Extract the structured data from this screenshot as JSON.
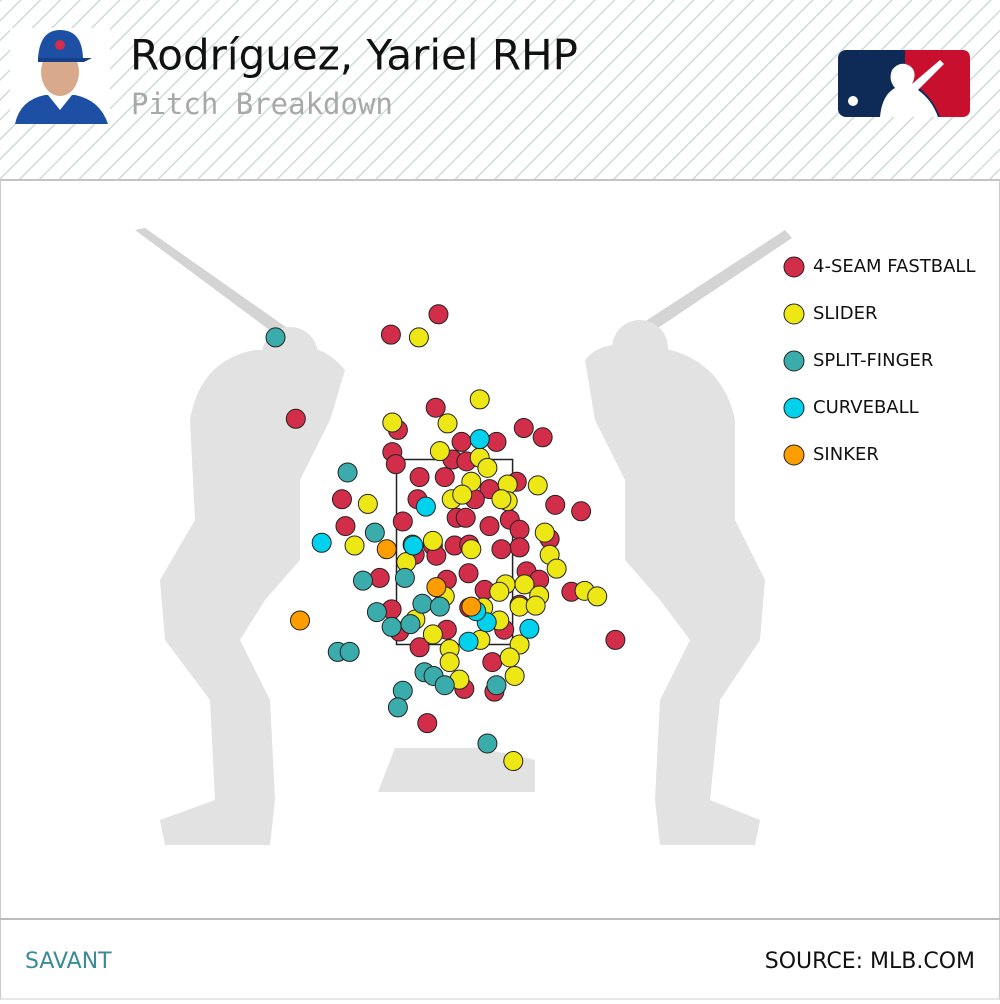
{
  "chart_data": {
    "type": "scatter",
    "title": "Rodríguez, Yariel RHP",
    "subtitle": "Pitch Breakdown",
    "footer_left": "SAVANT",
    "footer_right": "SOURCE: MLB.COM",
    "xlim": [
      -6.5,
      7.8
    ],
    "ylim": [
      -1.5,
      6.5
    ],
    "strike_zone": {
      "x": [
        -0.83,
        0.83
      ],
      "y": [
        1.5,
        3.5
      ]
    },
    "series": [
      {
        "name": "4-SEAM FASTBALL",
        "color": "#d22d49",
        "x": [
          -0.23,
          -0.91,
          -2.27,
          -0.27,
          -0.81,
          0.1,
          0.6,
          0.99,
          1.26,
          -0.89,
          -0.03,
          0.17,
          -0.84,
          -0.5,
          -0.14,
          0.5,
          0.89,
          -1.61,
          -0.53,
          0.29,
          1.44,
          1.81,
          0.03,
          -1.56,
          -0.74,
          0.5,
          0.79,
          0.93,
          -0.31,
          0.0,
          -0.57,
          -0.26,
          0.21,
          0.93,
          1.36,
          -1.07,
          0.2,
          -0.11,
          1.03,
          1.21,
          0.43,
          1.67,
          -0.9,
          0.21,
          0.93,
          -0.11,
          -0.79,
          -0.5,
          0.71,
          2.3,
          0.54,
          0.14,
          0.57,
          -0.39,
          0.67,
          0.16
        ],
        "values": [
          5.07,
          4.85,
          3.94,
          4.06,
          3.82,
          3.69,
          3.69,
          3.84,
          3.74,
          3.58,
          3.5,
          3.48,
          3.45,
          3.31,
          3.31,
          3.18,
          3.26,
          3.07,
          3.07,
          3.07,
          3.01,
          2.94,
          2.87,
          2.78,
          2.83,
          2.78,
          2.85,
          2.74,
          2.57,
          2.57,
          2.47,
          2.46,
          2.58,
          2.55,
          2.64,
          2.22,
          2.27,
          2.2,
          2.29,
          2.2,
          2.09,
          2.07,
          1.88,
          1.9,
          1.93,
          1.66,
          1.64,
          1.47,
          1.66,
          1.55,
          1.31,
          1.02,
          0.99,
          0.65,
          2.53,
          2.87
        ]
      },
      {
        "name": "SLIDER",
        "color": "#eee716",
        "x": [
          -0.51,
          0.36,
          -0.89,
          -0.1,
          -0.21,
          0.36,
          0.47,
          0.24,
          0.76,
          1.19,
          -1.24,
          -0.04,
          0.11,
          0.76,
          1.29,
          -1.43,
          -0.31,
          0.24,
          1.36,
          1.46,
          -0.69,
          0.73,
          1.0,
          1.86,
          2.04,
          -0.14,
          0.64,
          1.21,
          0.93,
          0.41,
          -0.56,
          0.64,
          -0.31,
          0.37,
          0.93,
          -0.07,
          -0.07,
          0.79,
          0.86,
          0.07,
          0.84,
          1.16,
          -0.6,
          0.67
        ],
        "values": [
          4.82,
          4.15,
          3.9,
          3.89,
          3.59,
          3.52,
          3.41,
          3.26,
          3.23,
          3.22,
          3.02,
          3.07,
          3.12,
          3.05,
          2.71,
          2.57,
          2.62,
          2.53,
          2.47,
          2.32,
          2.39,
          2.15,
          2.15,
          2.08,
          2.02,
          2.02,
          2.07,
          2.03,
          1.91,
          1.9,
          1.77,
          1.76,
          1.61,
          1.55,
          1.5,
          1.45,
          1.31,
          1.36,
          1.16,
          1.12,
          0.24,
          1.92,
          2.58,
          3.07
        ]
      },
      {
        "name": "SPLIT-FINGER",
        "color": "#3bacac",
        "x": [
          -2.56,
          -1.53,
          -1.14,
          -1.31,
          -0.71,
          -1.11,
          -0.9,
          -0.46,
          -0.21,
          -1.67,
          -1.5,
          -0.43,
          -0.3,
          -0.14,
          -0.74,
          -0.81,
          0.47,
          0.6,
          -0.63
        ],
        "values": [
          4.82,
          3.36,
          2.71,
          2.19,
          2.22,
          1.85,
          1.69,
          1.94,
          1.91,
          1.42,
          1.42,
          1.2,
          1.16,
          1.06,
          1.0,
          0.82,
          0.43,
          1.06,
          1.72
        ]
      },
      {
        "name": "CURVEBALL",
        "color": "#00d1ed",
        "x": [
          0.36,
          -0.41,
          -1.9,
          -0.59,
          0.46,
          1.07,
          0.2,
          0.31
        ],
        "values": [
          3.72,
          2.99,
          2.6,
          2.57,
          1.74,
          1.67,
          1.53,
          1.86
        ]
      },
      {
        "name": "SINKER",
        "color": "#fe9d00",
        "x": [
          -0.97,
          -2.21,
          -0.26,
          0.24
        ],
        "values": [
          2.53,
          1.76,
          2.12,
          1.91
        ]
      }
    ]
  }
}
